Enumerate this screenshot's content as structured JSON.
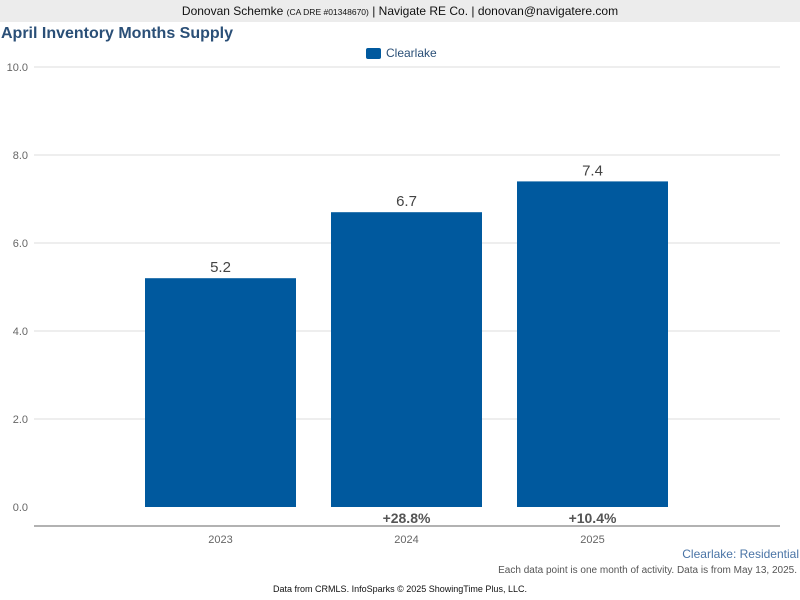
{
  "header": {
    "agent_name": "Donovan Schemke",
    "license": "(CA DRE #01348670)",
    "company_and_email": "| Navigate RE Co. | donovan@navigatere.com"
  },
  "chart_data": {
    "type": "bar",
    "title": "April Inventory Months Supply",
    "categories": [
      "2023",
      "2024",
      "2025"
    ],
    "series": [
      {
        "name": "Clearlake",
        "values": [
          5.2,
          6.7,
          7.4
        ],
        "color": "#00599e"
      }
    ],
    "value_labels": [
      "5.2",
      "6.7",
      "7.4"
    ],
    "changes": [
      "",
      "+28.8%",
      "+10.4%"
    ],
    "yticks": [
      "0.0",
      "2.0",
      "4.0",
      "6.0",
      "8.0",
      "10.0"
    ],
    "ylim": [
      0,
      10
    ],
    "xlabel": "",
    "ylabel": "",
    "grid": true,
    "legend": "top-center",
    "subtitle": "Clearlake: Residential"
  },
  "footer": {
    "note": "Each data point is one month of activity. Data is from May 13, 2025.",
    "credit": "Data from CRMLS. InfoSparks © 2025 ShowingTime Plus, LLC."
  }
}
